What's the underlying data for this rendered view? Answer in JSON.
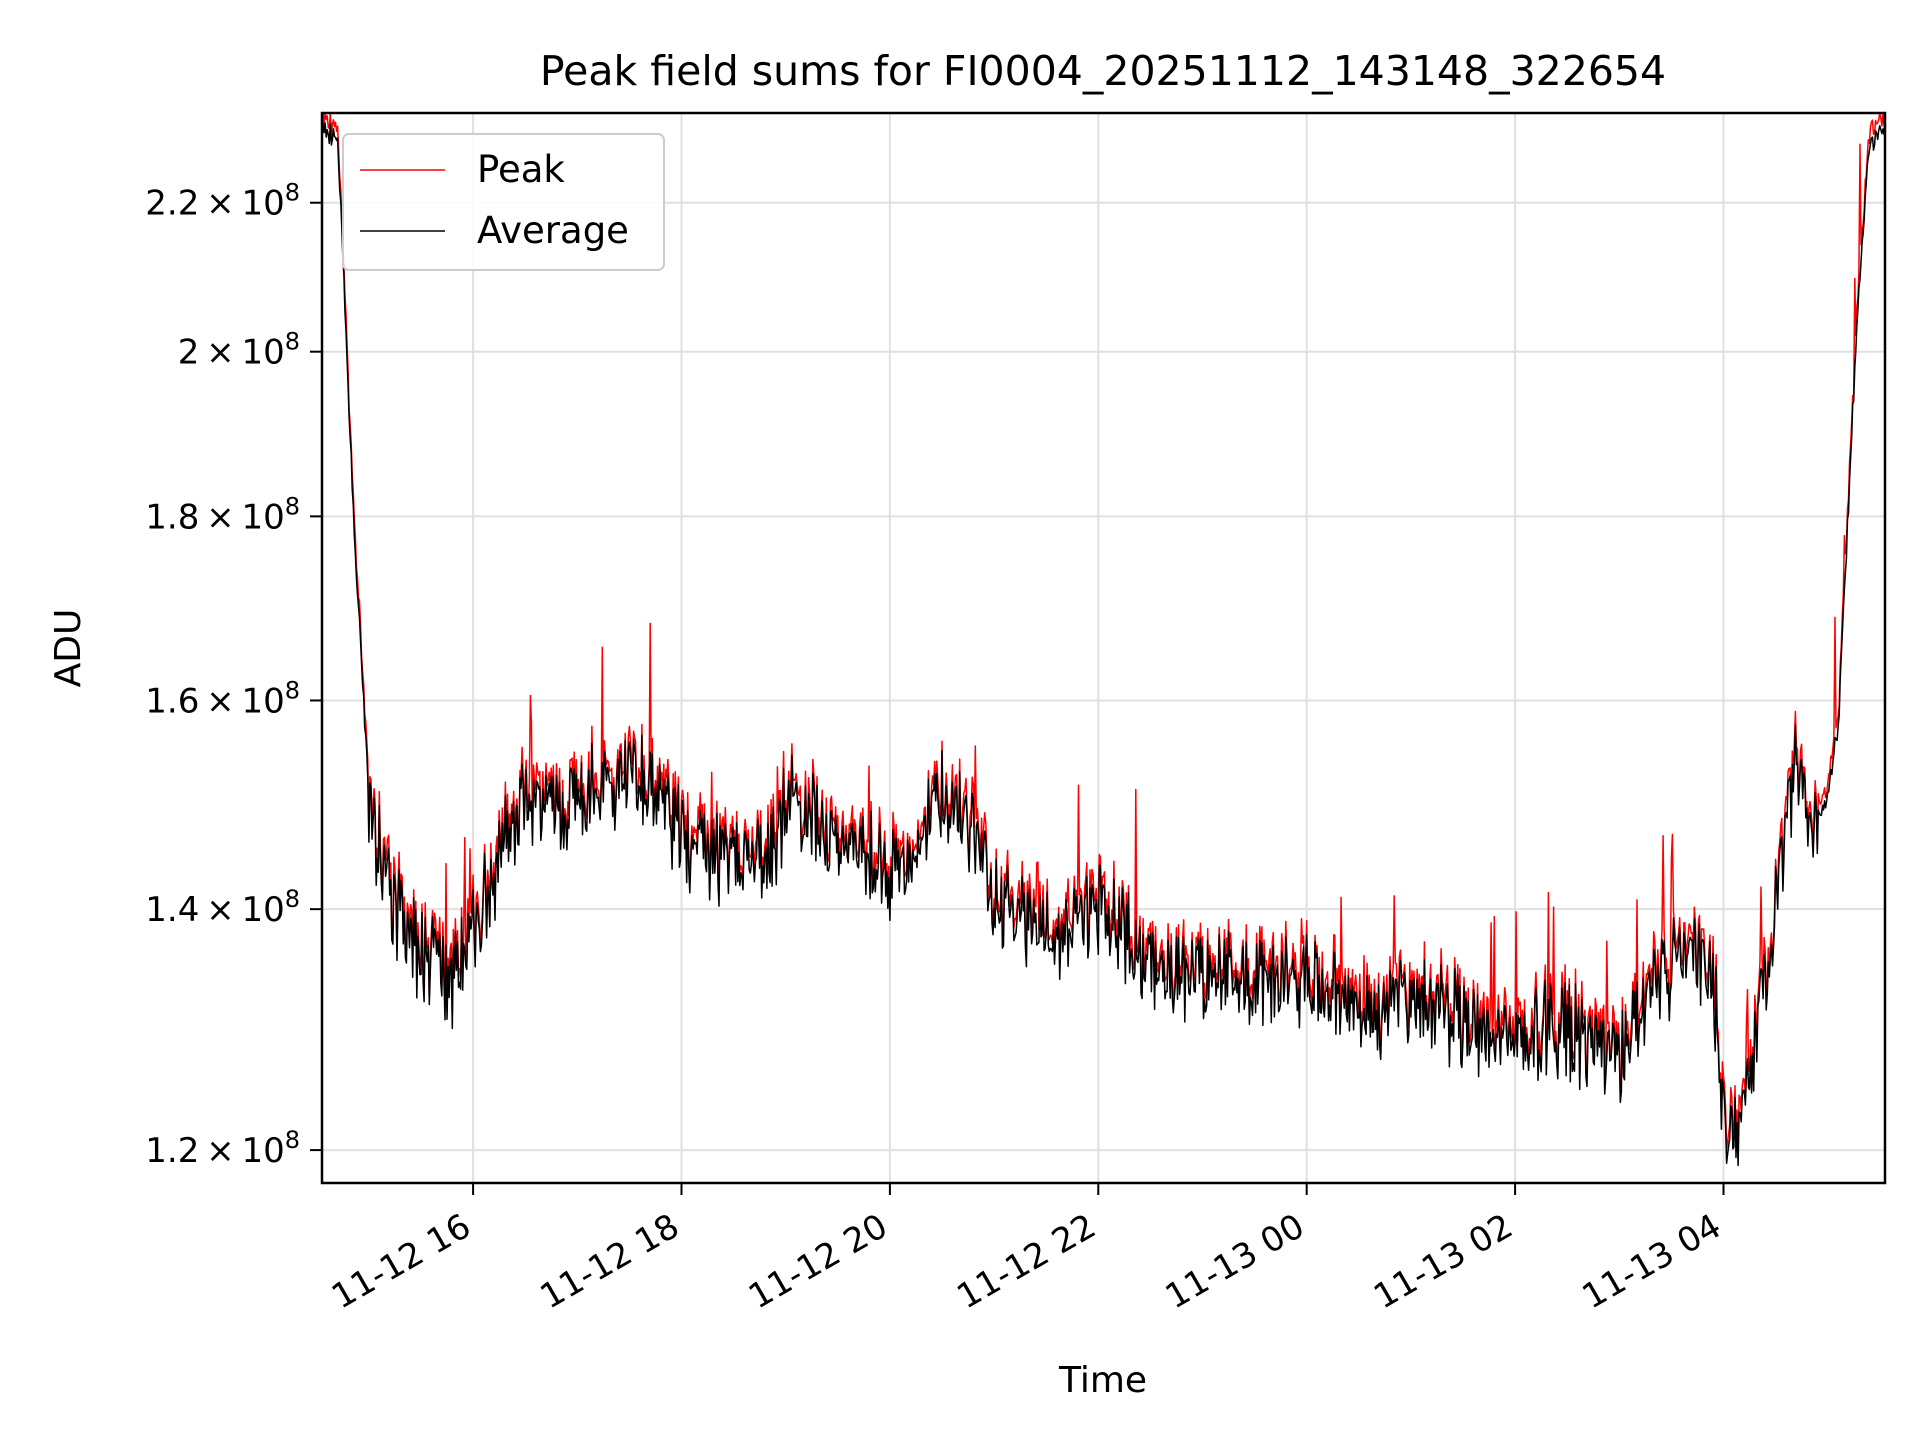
{
  "chart_data": {
    "type": "line",
    "title": "Peak field sums for FI0004_20251112_143148_322654",
    "xlabel": "Time",
    "ylabel": "ADU",
    "yscale": "log",
    "ylim": [
      117500000,
      233000000
    ],
    "xlim_hours": [
      14.55,
      29.55
    ],
    "grid": true,
    "legend_position": "top-left",
    "x_ticks": [
      {
        "label": "11-12 16",
        "hours": 16
      },
      {
        "label": "11-12 18",
        "hours": 18
      },
      {
        "label": "11-12 20",
        "hours": 20
      },
      {
        "label": "11-12 22",
        "hours": 22
      },
      {
        "label": "11-13 00",
        "hours": 24
      },
      {
        "label": "11-13 02",
        "hours": 26
      },
      {
        "label": "11-13 04",
        "hours": 28
      }
    ],
    "y_ticks": [
      {
        "mant": "1.2",
        "value": 120000000
      },
      {
        "mant": "1.4",
        "value": 140000000
      },
      {
        "mant": "1.6",
        "value": 160000000
      },
      {
        "mant": "1.8",
        "value": 180000000
      },
      {
        "mant": "2",
        "value": 200000000
      },
      {
        "mant": "2.2",
        "value": 220000000
      }
    ],
    "y_tick_base": "10",
    "y_tick_exp": "8",
    "series": [
      {
        "name": "Peak",
        "color": "#ff0000"
      },
      {
        "name": "Average",
        "color": "#000000"
      }
    ],
    "x_hours": [
      14.55,
      14.7,
      14.85,
      15.0,
      15.2,
      15.5,
      15.8,
      16.0,
      16.25,
      16.5,
      16.8,
      17.0,
      17.2,
      17.5,
      17.8,
      18.0,
      18.3,
      18.6,
      18.8,
      19.0,
      19.2,
      19.5,
      19.8,
      20.0,
      20.25,
      20.5,
      20.7,
      21.0,
      21.3,
      21.6,
      22.0,
      22.3,
      22.6,
      23.0,
      23.3,
      23.6,
      24.0,
      24.3,
      24.6,
      25.0,
      25.3,
      25.6,
      26.0,
      26.3,
      26.6,
      27.0,
      27.3,
      27.6,
      27.9,
      28.0,
      28.15,
      28.3,
      28.5,
      28.7,
      28.85,
      29.0,
      29.1,
      29.2,
      29.3,
      29.4,
      29.55
    ],
    "values_avg": [
      231000000,
      229000000,
      180000000,
      150000000,
      141000000,
      136000000,
      134000000,
      138000000,
      145000000,
      150000000,
      149000000,
      150000000,
      151000000,
      153000000,
      150000000,
      147000000,
      144000000,
      145000000,
      143000000,
      150000000,
      149000000,
      147000000,
      145000000,
      142000000,
      146000000,
      151000000,
      149000000,
      141000000,
      139000000,
      138000000,
      140000000,
      137000000,
      135000000,
      134000000,
      135000000,
      134000000,
      134000000,
      132000000,
      131000000,
      132000000,
      131000000,
      130000000,
      129000000,
      130000000,
      129000000,
      127000000,
      133000000,
      136000000,
      134000000,
      123000000,
      121000000,
      128000000,
      140000000,
      155000000,
      147000000,
      151000000,
      157000000,
      181000000,
      209000000,
      228000000,
      232000000
    ]
  }
}
